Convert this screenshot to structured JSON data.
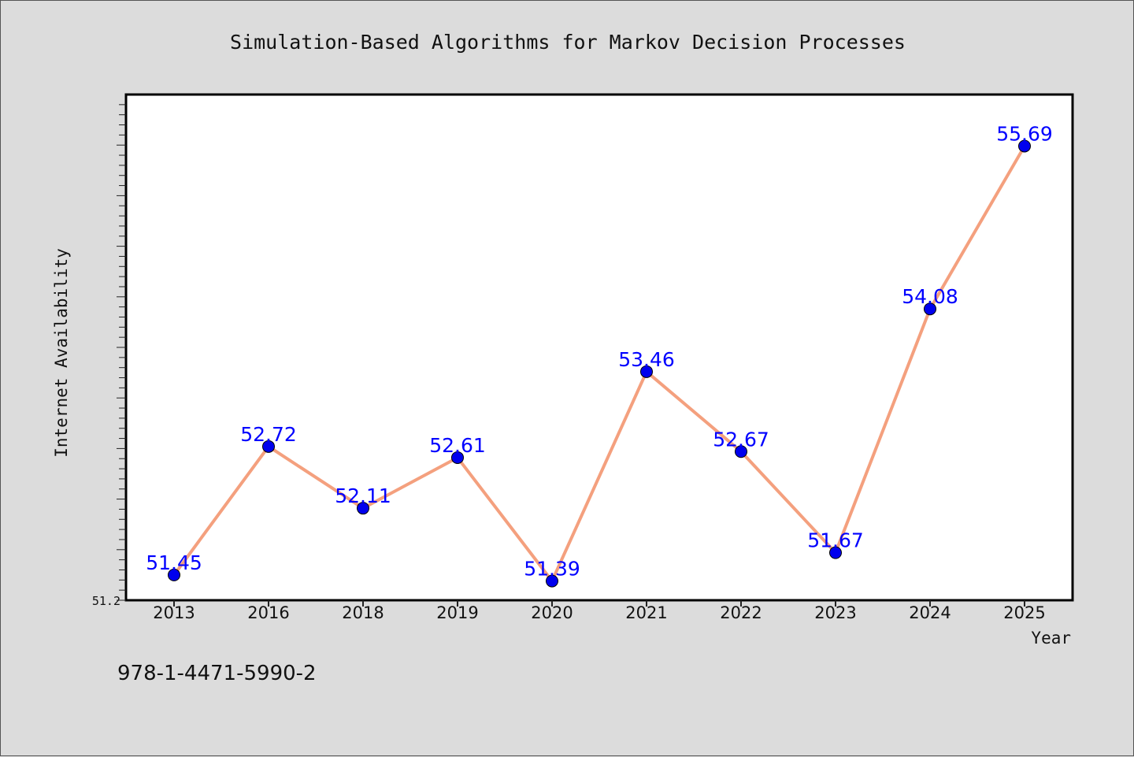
{
  "chart_data": {
    "type": "line",
    "title": "Simulation-Based Algorithms for Markov Decision Processes",
    "xlabel": "Year",
    "ylabel": "Internet Availability",
    "categories": [
      "2013",
      "2016",
      "2018",
      "2019",
      "2020",
      "2021",
      "2022",
      "2023",
      "2024",
      "2025"
    ],
    "series": [
      {
        "values": [
          51.45,
          52.72,
          52.11,
          52.61,
          51.39,
          53.46,
          52.67,
          51.67,
          54.08,
          55.69
        ],
        "data_labels": [
          "51.45",
          "52.72",
          "52.11",
          "52.61",
          "51.39",
          "53.46",
          "52.67",
          "51.67",
          "54.08",
          "55.69"
        ]
      }
    ],
    "ylim": [
      51.2,
      56.2
    ],
    "yticks": [
      51.2
    ],
    "ytick_labels": [
      "51.2"
    ],
    "minor_tick_step": 0.1,
    "grid": false,
    "legend": "none",
    "colors": {
      "line": "#f4a07e",
      "marker": "#0000ee",
      "data_label": "#0000ff",
      "plot_background": "#ffffff",
      "page_background": "#dcdcdc"
    }
  },
  "caption": "978-1-4471-5990-2"
}
